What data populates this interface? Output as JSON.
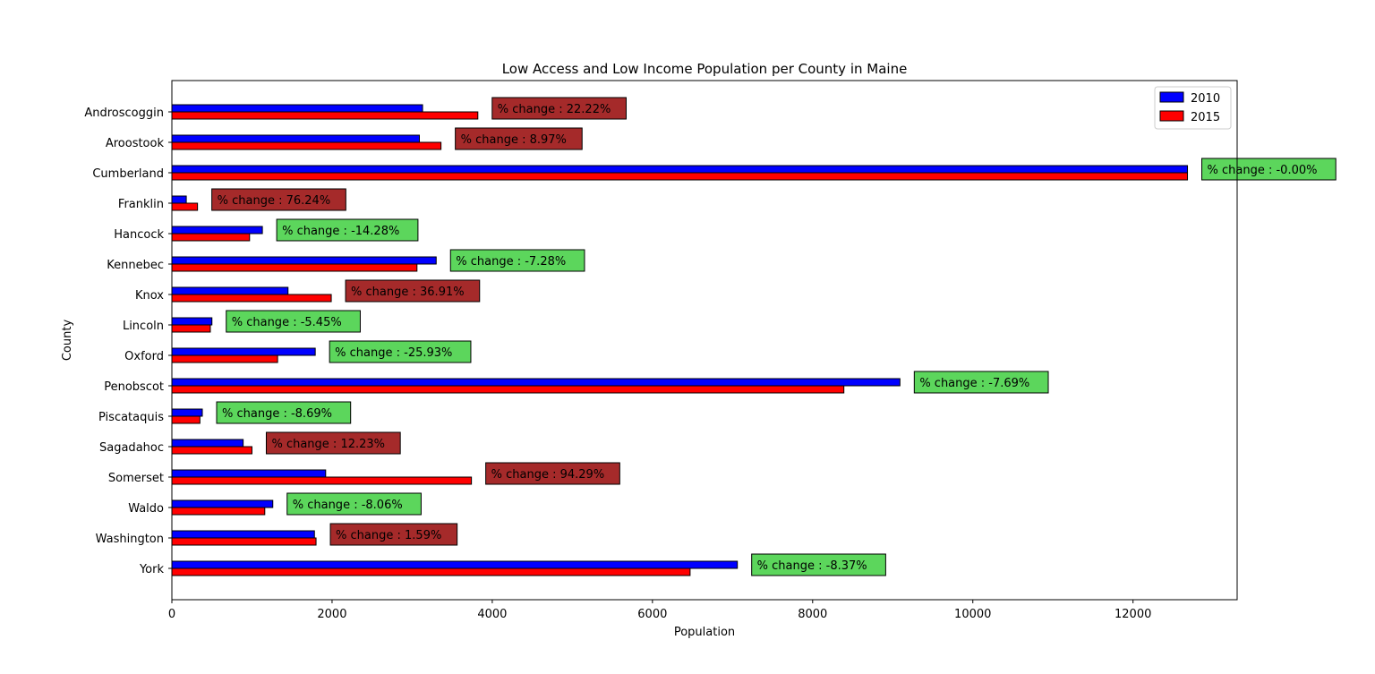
{
  "chart_data": {
    "type": "bar",
    "orientation": "horizontal",
    "title": "Low Access and Low Income Population per County in Maine",
    "xlabel": "Population",
    "ylabel": "County",
    "xlim": [
      0,
      13300
    ],
    "xticks": [
      0,
      2000,
      4000,
      6000,
      8000,
      10000,
      12000
    ],
    "legend_position": "top-right",
    "categories": [
      "Androscoggin",
      "Aroostook",
      "Cumberland",
      "Franklin",
      "Hancock",
      "Kennebec",
      "Knox",
      "Lincoln",
      "Oxford",
      "Penobscot",
      "Piscataquis",
      "Sagadahoc",
      "Somerset",
      "Waldo",
      "Washington",
      "York"
    ],
    "series": [
      {
        "name": "2010",
        "color": "#0000ff",
        "values": [
          3130,
          3090,
          12680,
          180,
          1130,
          3300,
          1450,
          500,
          1790,
          9090,
          380,
          890,
          1920,
          1260,
          1780,
          7060
        ]
      },
      {
        "name": "2015",
        "color": "#ff0000",
        "values": [
          3820,
          3360,
          12680,
          320,
          970,
          3060,
          1990,
          480,
          1320,
          8390,
          350,
          1000,
          3740,
          1160,
          1800,
          6470
        ]
      }
    ],
    "annotations": [
      "% change : 22.22%",
      "% change : 8.97%",
      "% change : -0.00%",
      "% change : 76.24%",
      "% change : -14.28%",
      "% change : -7.28%",
      "% change : 36.91%",
      "% change : -5.45%",
      "% change : -25.93%",
      "% change : -7.69%",
      "% change : -8.69%",
      "% change : 12.23%",
      "% change : 94.29%",
      "% change : -8.06%",
      "% change : 1.59%",
      "% change : -8.37%"
    ],
    "annotation_colors": {
      "increase": "#a52a2a",
      "decrease": "#5cd65c"
    }
  }
}
